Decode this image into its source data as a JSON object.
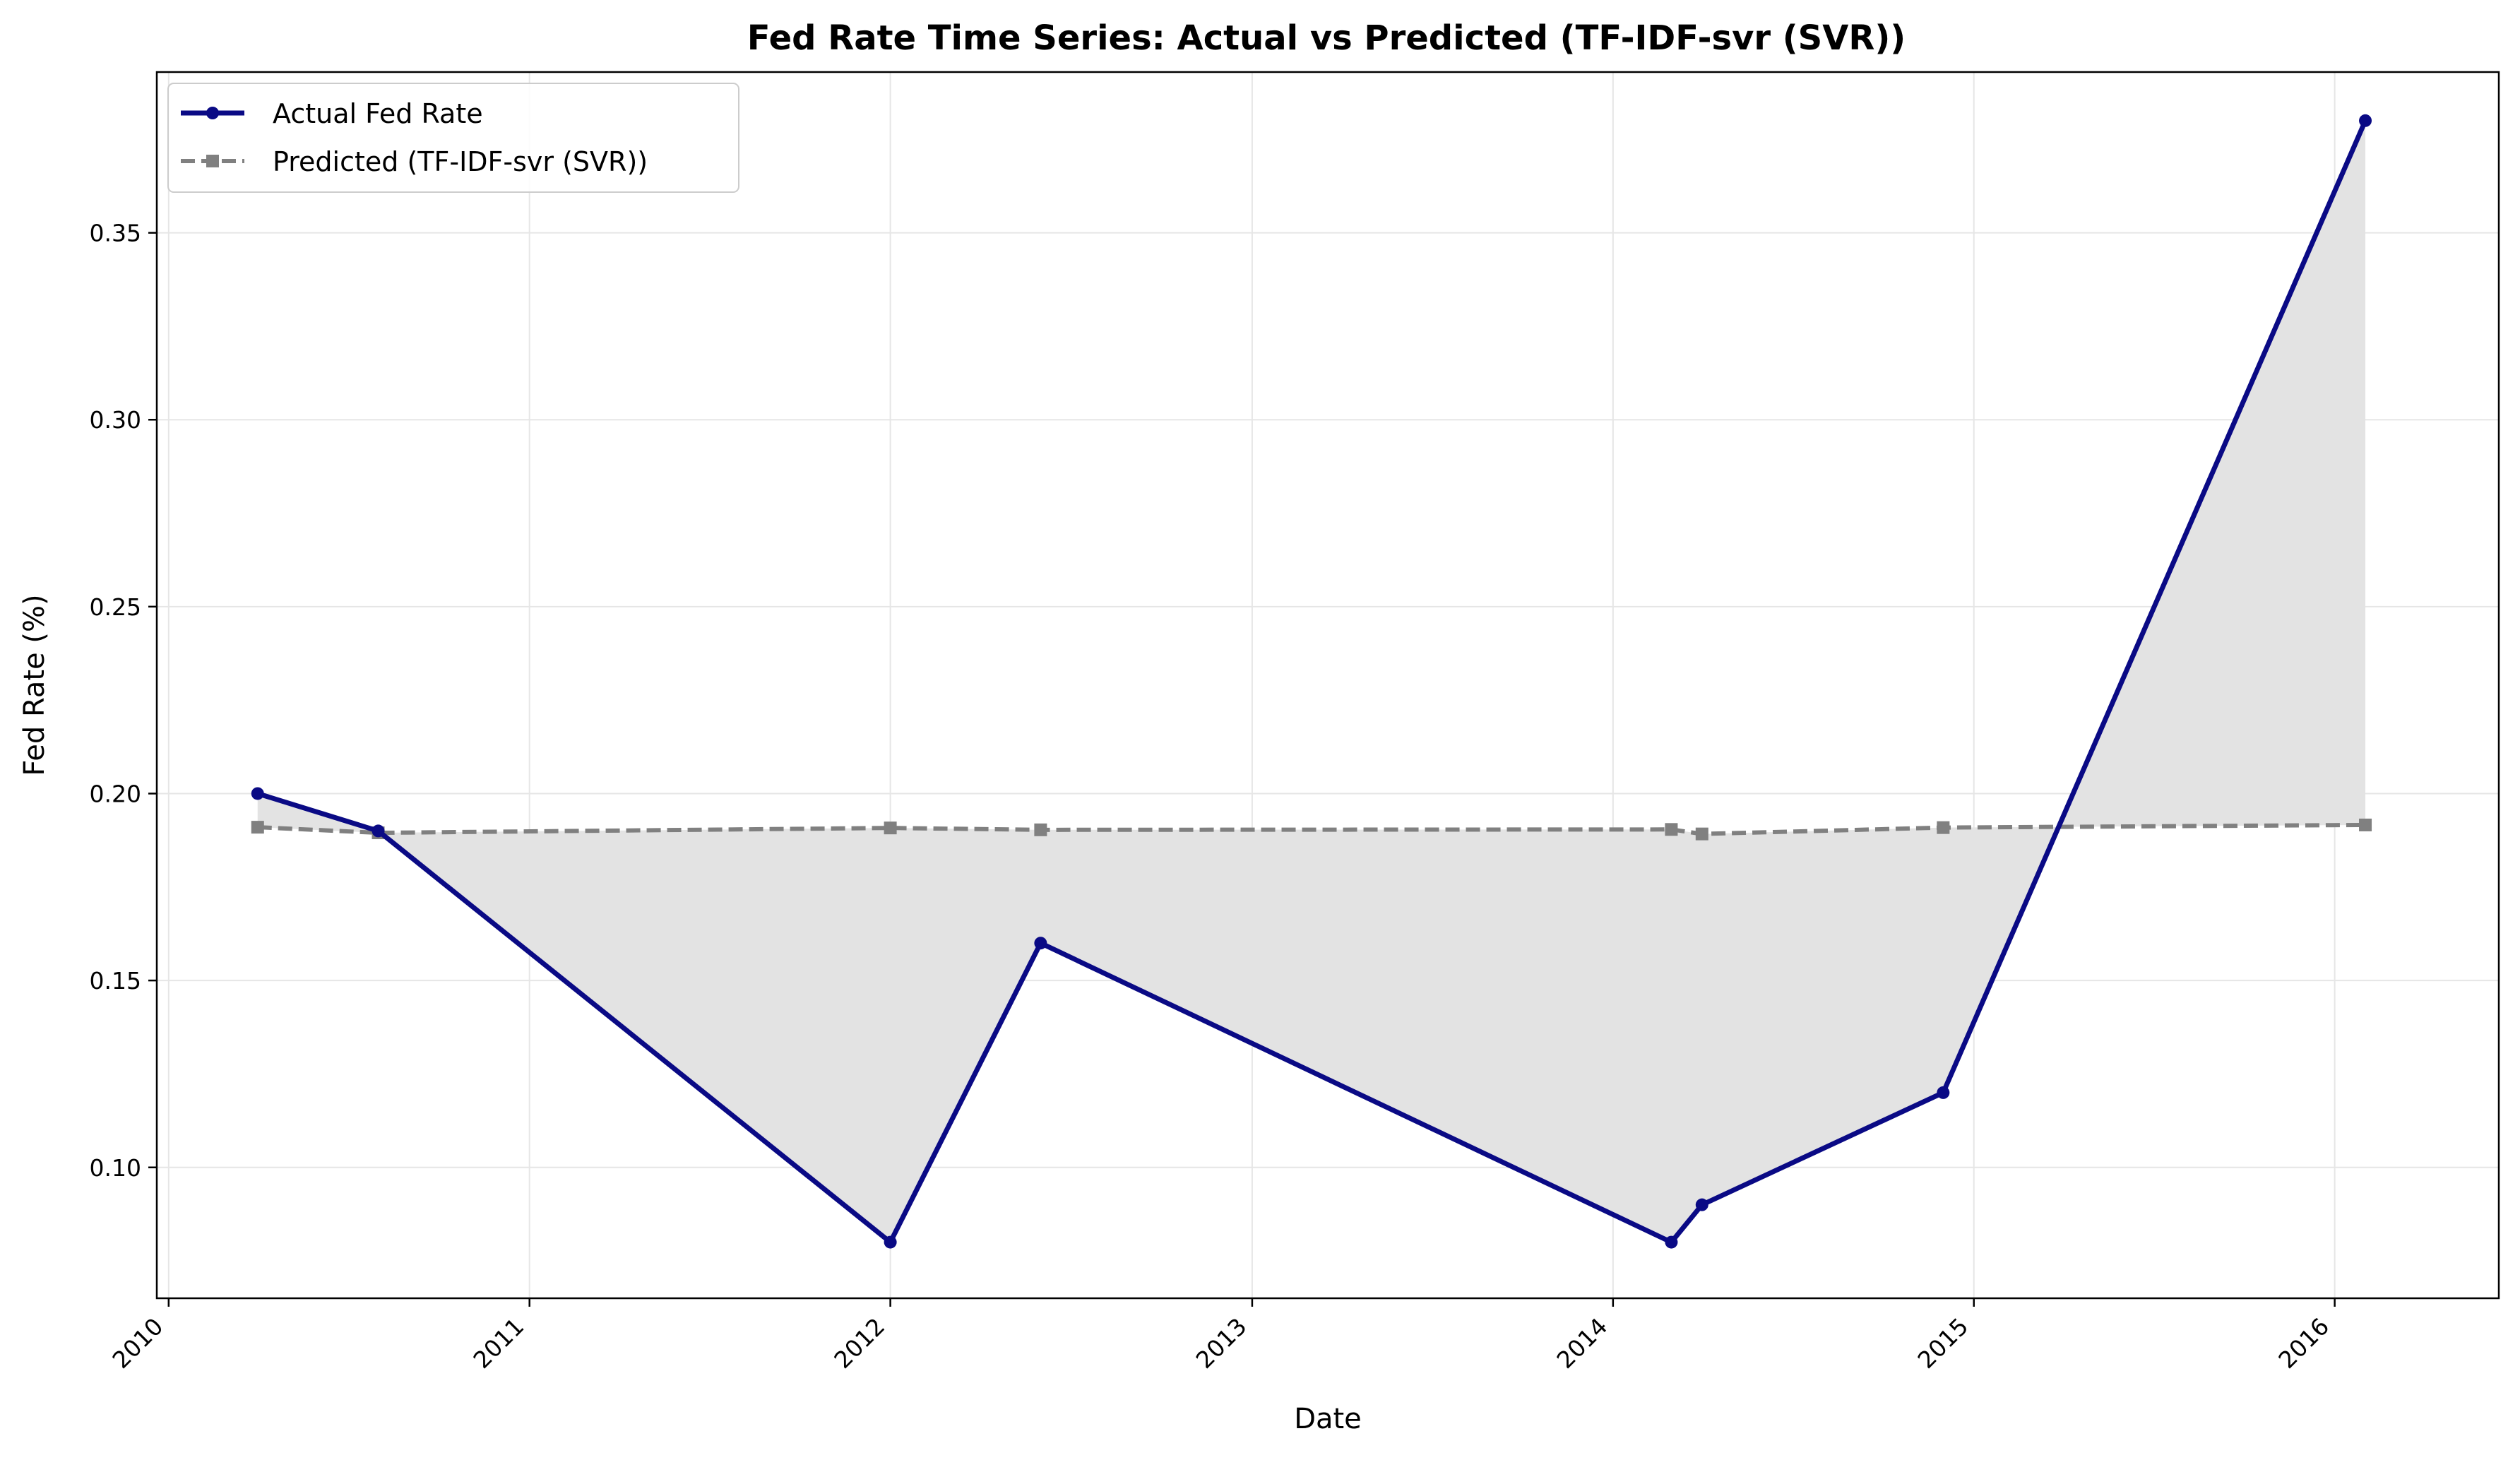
{
  "chart_data": {
    "type": "line",
    "title": "Fed Rate Time Series: Actual vs Predicted (TF-IDF-svr (SVR))",
    "xlabel": "Date",
    "ylabel": "Fed Rate (%)",
    "xlim": [
      "2009-12-20",
      "2016-06-15"
    ],
    "ylim": [
      0.065,
      0.393
    ],
    "x_ticks": [
      {
        "date": "2010-01-01",
        "label": "2010"
      },
      {
        "date": "2011-01-01",
        "label": "2011"
      },
      {
        "date": "2012-01-01",
        "label": "2012"
      },
      {
        "date": "2013-01-01",
        "label": "2013"
      },
      {
        "date": "2014-01-01",
        "label": "2014"
      },
      {
        "date": "2015-01-01",
        "label": "2015"
      },
      {
        "date": "2016-01-01",
        "label": "2016"
      }
    ],
    "y_ticks": [
      {
        "value": 0.1,
        "label": "0.10"
      },
      {
        "value": 0.15,
        "label": "0.15"
      },
      {
        "value": 0.2,
        "label": "0.20"
      },
      {
        "value": 0.25,
        "label": "0.25"
      },
      {
        "value": 0.3,
        "label": "0.30"
      },
      {
        "value": 0.35,
        "label": "0.35"
      }
    ],
    "grid": true,
    "legend_position": "top-left",
    "fill_between": true,
    "fill_color": "#e3e3e3",
    "series": [
      {
        "name": "Actual Fed Rate",
        "color": "#0a0a85",
        "style": "solid",
        "marker": "circle",
        "points": [
          {
            "x": "2010-04-01",
            "y": 0.2
          },
          {
            "x": "2010-08-01",
            "y": 0.19
          },
          {
            "x": "2012-01-01",
            "y": 0.08
          },
          {
            "x": "2012-06-01",
            "y": 0.16
          },
          {
            "x": "2014-03-01",
            "y": 0.08
          },
          {
            "x": "2014-04-01",
            "y": 0.09
          },
          {
            "x": "2014-12-01",
            "y": 0.12
          },
          {
            "x": "2016-02-01",
            "y": 0.38
          }
        ]
      },
      {
        "name": "Predicted (TF-IDF-svr (SVR))",
        "color": "#808080",
        "style": "dashed",
        "marker": "square",
        "points": [
          {
            "x": "2010-04-01",
            "y": 0.191
          },
          {
            "x": "2010-08-01",
            "y": 0.1895
          },
          {
            "x": "2012-01-01",
            "y": 0.1908
          },
          {
            "x": "2012-06-01",
            "y": 0.1903
          },
          {
            "x": "2014-03-01",
            "y": 0.1904
          },
          {
            "x": "2014-04-01",
            "y": 0.1892
          },
          {
            "x": "2014-12-01",
            "y": 0.1909
          },
          {
            "x": "2016-02-01",
            "y": 0.1916
          }
        ]
      }
    ]
  }
}
